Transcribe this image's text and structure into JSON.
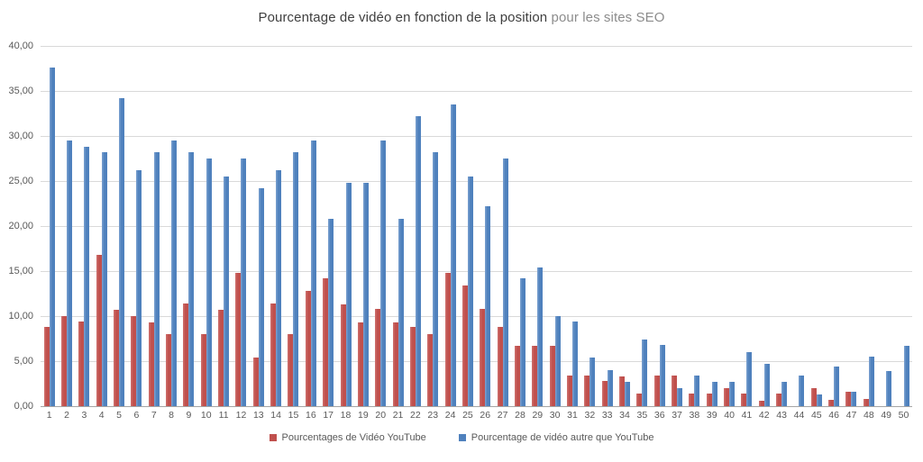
{
  "chart_data": {
    "type": "bar",
    "title": "Pourcentage de vidéo en fonction de la position",
    "title_suffix": " pour les sites SEO",
    "xlabel": "",
    "ylabel": "",
    "ylim": [
      0,
      40
    ],
    "yticks": [
      "0,00",
      "5,00",
      "10,00",
      "15,00",
      "20,00",
      "25,00",
      "30,00",
      "35,00",
      "40,00"
    ],
    "grid": true,
    "legend_position": "bottom",
    "categories": [
      "1",
      "2",
      "3",
      "4",
      "5",
      "6",
      "7",
      "8",
      "9",
      "10",
      "11",
      "12",
      "13",
      "14",
      "15",
      "16",
      "17",
      "18",
      "19",
      "20",
      "21",
      "22",
      "23",
      "24",
      "25",
      "26",
      "27",
      "28",
      "29",
      "30",
      "31",
      "32",
      "33",
      "34",
      "35",
      "36",
      "37",
      "38",
      "39",
      "40",
      "41",
      "42",
      "43",
      "44",
      "45",
      "46",
      "47",
      "48",
      "49",
      "50"
    ],
    "series": [
      {
        "name": "Pourcentages de Vidéo YouTube",
        "color": "#C0504D",
        "values": [
          8.8,
          10.0,
          9.4,
          16.8,
          10.7,
          10.0,
          9.3,
          8.0,
          11.4,
          8.0,
          10.7,
          14.8,
          5.4,
          11.4,
          8.0,
          12.8,
          14.2,
          11.3,
          9.3,
          10.8,
          9.3,
          8.8,
          8.0,
          14.8,
          13.4,
          10.8,
          8.8,
          6.7,
          6.7,
          6.7,
          3.4,
          3.4,
          2.8,
          3.3,
          1.4,
          3.4,
          3.4,
          1.4,
          1.4,
          2.0,
          1.4,
          0.6,
          1.4,
          0,
          2.0,
          0.7,
          1.6,
          0.8,
          0,
          0
        ]
      },
      {
        "name": "Pourcentage de vidéo autre que YouTube",
        "color": "#4F81BD",
        "values": [
          37.6,
          29.5,
          28.8,
          28.2,
          34.2,
          26.2,
          28.2,
          29.5,
          28.2,
          27.5,
          25.5,
          27.5,
          24.2,
          26.2,
          28.2,
          29.5,
          20.8,
          24.8,
          24.8,
          29.5,
          20.8,
          32.2,
          28.2,
          33.5,
          25.5,
          22.2,
          27.5,
          14.2,
          15.4,
          10.0,
          9.4,
          5.4,
          4.0,
          2.7,
          7.4,
          6.8,
          2.0,
          3.4,
          2.7,
          2.7,
          6.0,
          4.7,
          2.7,
          3.4,
          1.3,
          4.4,
          1.6,
          5.5,
          3.9,
          6.7
        ]
      }
    ]
  }
}
